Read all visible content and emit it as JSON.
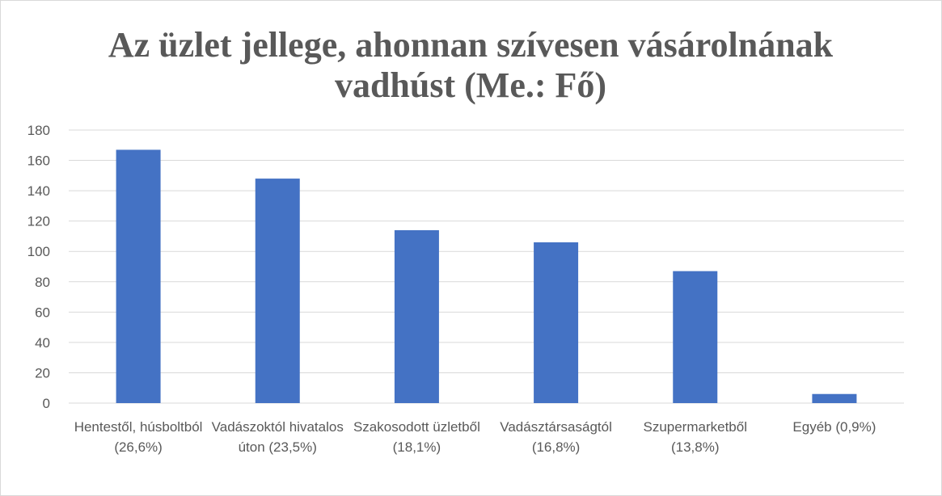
{
  "chart_data": {
    "type": "bar",
    "title": "Az üzlet jellege, ahonnan szívesen vásárolnának vadhúst (Me.: Fő)",
    "categories": [
      "Hentestől, húsboltból (26,6%)",
      "Vadászoktól hivatalos úton (23,5%)",
      "Szakosodott üzletből (18,1%)",
      "Vadásztársaságtól (16,8%)",
      "Szupermarketből (13,8%)",
      "Egyéb (0,9%)"
    ],
    "values": [
      167,
      148,
      114,
      106,
      87,
      6
    ],
    "color": "#4472c4",
    "ylim": [
      0,
      180
    ],
    "yticks": [
      0,
      20,
      40,
      60,
      80,
      100,
      120,
      140,
      160,
      180
    ],
    "grid": true
  }
}
